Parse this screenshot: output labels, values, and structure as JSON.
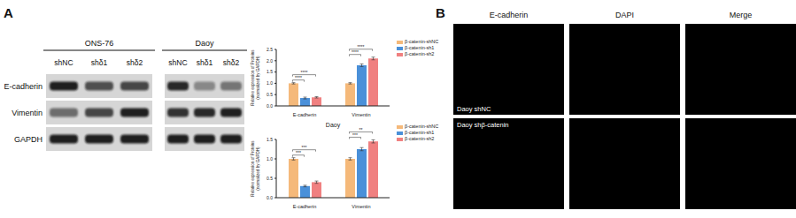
{
  "panel_A": {
    "label": "A",
    "blots": [
      {
        "title": "ONS-76",
        "lanes": [
          "shNC",
          "shδ1",
          "shδ2"
        ],
        "rows": [
          "E-cadherin",
          "Vimentin",
          "GAPDH"
        ]
      },
      {
        "title": "Daoy",
        "lanes": [
          "shNC",
          "shδ1",
          "shδ2"
        ]
      }
    ]
  },
  "chart_data": [
    {
      "type": "bar",
      "y_label": "Relative expression of Proteins (normalized by GAPDH)",
      "categories": [
        "E-cadherin",
        "Vimentin"
      ],
      "series": [
        {
          "name": "β-catenin-shNC",
          "color": "#f5b97a",
          "values": [
            1.0,
            1.0
          ],
          "errors": [
            0.03,
            0.03
          ]
        },
        {
          "name": "β-catenin-sh1",
          "color": "#4a90d9",
          "values": [
            0.35,
            1.8
          ],
          "errors": [
            0.04,
            0.06
          ]
        },
        {
          "name": "β-catenin-sh2",
          "color": "#f08080",
          "values": [
            0.38,
            2.1
          ],
          "errors": [
            0.03,
            0.06
          ]
        }
      ],
      "ylim": [
        0,
        2.5
      ],
      "yticks": [
        {
          "value": 0,
          "label": "0.0"
        },
        {
          "value": 0.5,
          "label": "0.5"
        },
        {
          "value": 1,
          "label": "1.0"
        },
        {
          "value": 1.5,
          "label": "1.5"
        },
        {
          "value": 2,
          "label": "2.0"
        },
        {
          "value": 2.5,
          "label": "2.5"
        }
      ],
      "legend": "upper right",
      "annotations": [
        {
          "category": "E-cadherin",
          "pair": [
            "β-catenin-shNC",
            "β-catenin-sh1"
          ],
          "text": "****"
        },
        {
          "category": "E-cadherin",
          "pair": [
            "β-catenin-shNC",
            "β-catenin-sh2"
          ],
          "text": "****"
        },
        {
          "category": "Vimentin",
          "pair": [
            "β-catenin-shNC",
            "β-catenin-sh1"
          ],
          "text": "****"
        },
        {
          "category": "Vimentin",
          "pair": [
            "β-catenin-shNC",
            "β-catenin-sh2"
          ],
          "text": "****"
        }
      ]
    },
    {
      "type": "bar",
      "title": "Daoy",
      "y_label": "Relative expression of Proteins (normalized by GAPDH)",
      "categories": [
        "E-cadherin",
        "Vimentin"
      ],
      "series": [
        {
          "name": "β-catenin-shNC",
          "color": "#f5b97a",
          "values": [
            1.0,
            1.0
          ],
          "errors": [
            0.03,
            0.03
          ]
        },
        {
          "name": "β-catenin-sh1",
          "color": "#4a90d9",
          "values": [
            0.3,
            1.25
          ],
          "errors": [
            0.02,
            0.04
          ]
        },
        {
          "name": "β-catenin-sh2",
          "color": "#f08080",
          "values": [
            0.4,
            1.45
          ],
          "errors": [
            0.03,
            0.04
          ]
        }
      ],
      "ylim": [
        0,
        1.5
      ],
      "yticks": [
        {
          "value": 0,
          "label": "0.0"
        },
        {
          "value": 0.5,
          "label": "0.5"
        },
        {
          "value": 1,
          "label": "1.0"
        },
        {
          "value": 1.5,
          "label": "1.5"
        }
      ],
      "legend": "upper right",
      "annotations": [
        {
          "category": "E-cadherin",
          "pair": [
            "β-catenin-shNC",
            "β-catenin-sh1"
          ],
          "text": "***"
        },
        {
          "category": "E-cadherin",
          "pair": [
            "β-catenin-shNC",
            "β-catenin-sh2"
          ],
          "text": "***"
        },
        {
          "category": "Vimentin",
          "pair": [
            "β-catenin-shNC",
            "β-catenin-sh1"
          ],
          "text": "***"
        },
        {
          "category": "Vimentin",
          "pair": [
            "β-catenin-shNC",
            "β-catenin-sh2"
          ],
          "text": "**"
        }
      ]
    }
  ],
  "panel_B": {
    "label": "B",
    "columns": [
      "E-cadherin",
      "DAPI",
      "Merge"
    ],
    "rows": [
      "Daoy shNC",
      "Daoy shβ-catenin"
    ]
  }
}
